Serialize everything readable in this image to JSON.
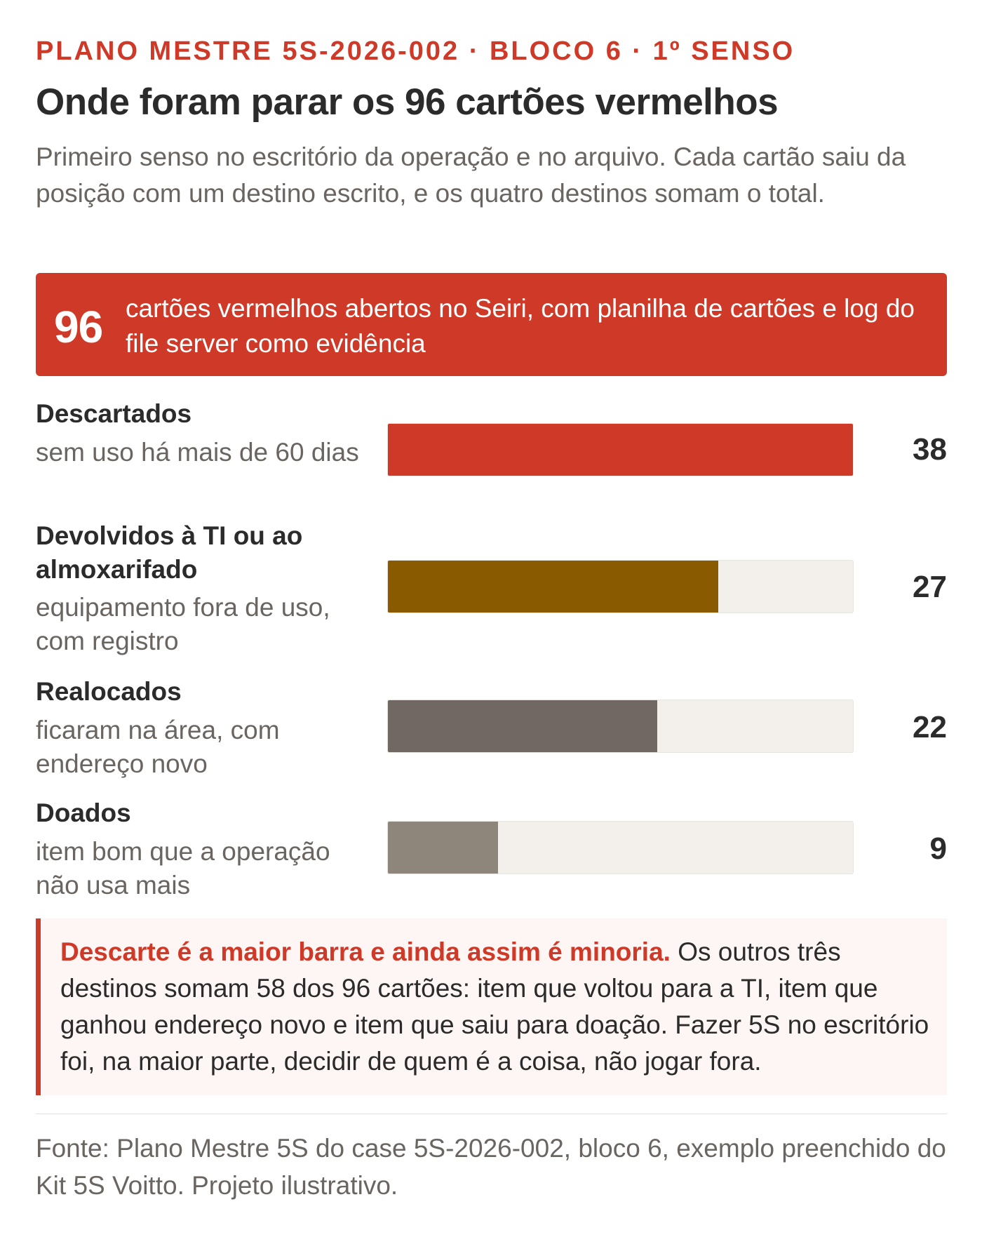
{
  "header": {
    "kicker": "PLANO MESTRE 5S-2026-002 · BLOCO 6 · 1º SENSO",
    "title": "Onde foram parar os 96 cartões vermelhos",
    "subtitle": "Primeiro senso no escritório da operação e no arquivo. Cada cartão saiu da posição com um destino escrito, e os quatro destinos somam o total."
  },
  "callout": {
    "number": "96",
    "text": "cartões vermelhos abertos no Seiri, com planilha de cartões e log do file server como evidência"
  },
  "chart_data": {
    "type": "bar",
    "orientation": "horizontal",
    "total": 96,
    "xlim": [
      0,
      38
    ],
    "grid": false,
    "categories": [
      "Descartados",
      "Devolvidos à TI ou ao almoxarifado",
      "Realocados",
      "Doados"
    ],
    "descriptions": [
      "sem uso há mais de 60 dias",
      "equipamento fora de uso, com registro",
      "ficaram na área, com endereço novo",
      "item bom que a operação não usa mais"
    ],
    "values": [
      38,
      27,
      22,
      9
    ],
    "colors": [
      "#cf3a28",
      "#8a5a00",
      "#716863",
      "#8e857b"
    ],
    "track_color": "#f3f0ec"
  },
  "note": {
    "highlight": "Descarte é a maior barra e ainda assim é minoria.",
    "text": "Os outros três destinos somam 58 dos 96 cartões: item que voltou para a TI, item que ganhou endereço novo e item que saiu para doação. Fazer 5S no escritório foi, na maior parte, decidir de quem é a coisa, não jogar fora."
  },
  "footer": {
    "source": "Fonte: Plano Mestre 5S do case 5S-2026-002, bloco 6, exemplo preenchido do Kit 5S Voitto. Projeto ilustrativo."
  }
}
